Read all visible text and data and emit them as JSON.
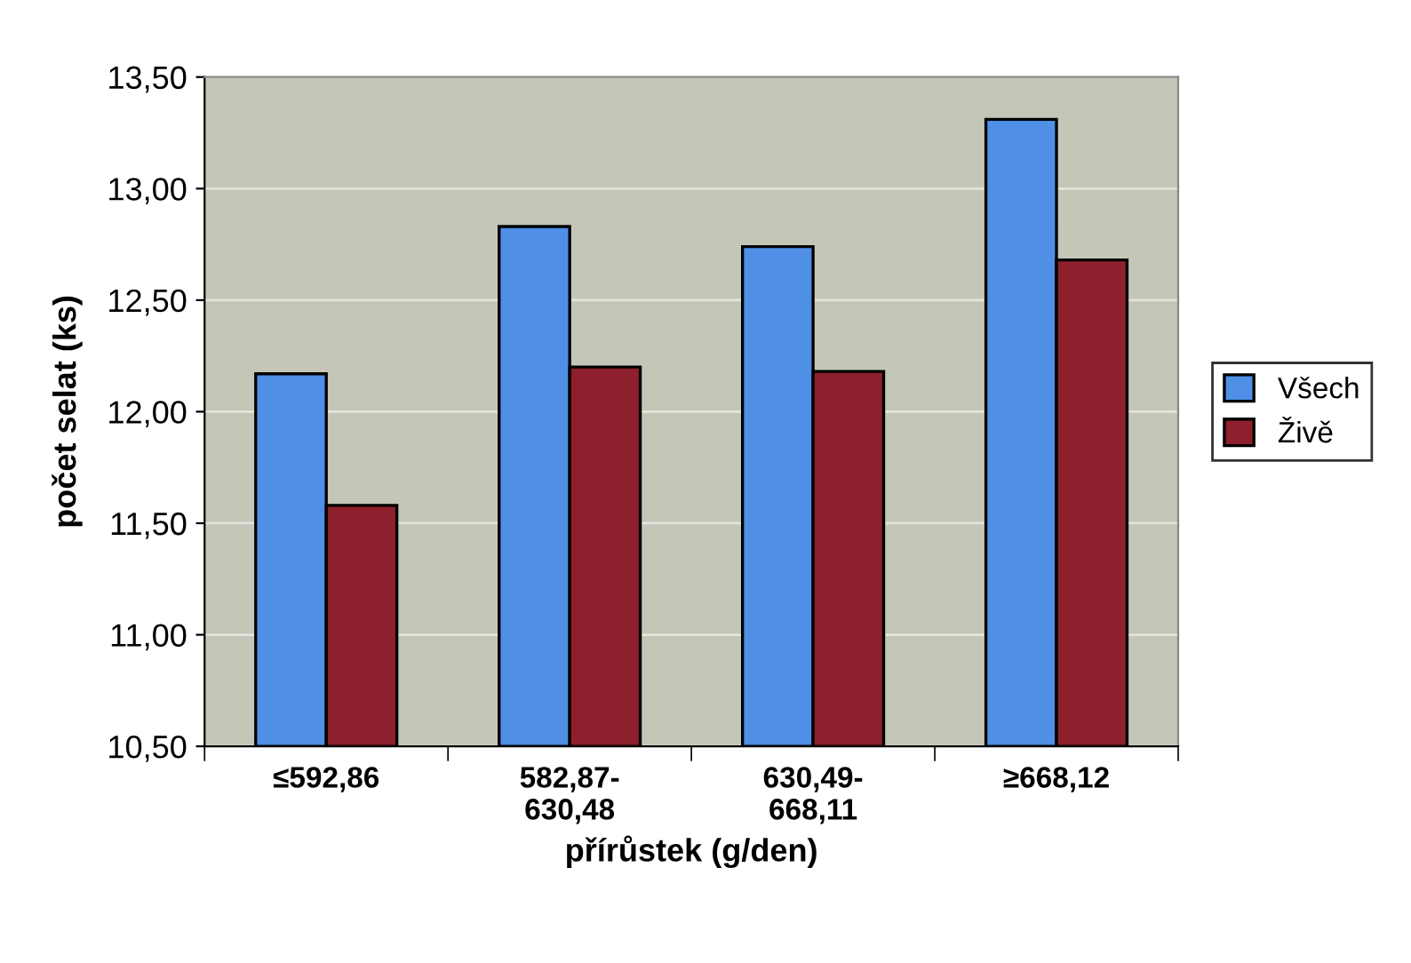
{
  "chart_data": {
    "type": "bar",
    "xlabel": "přírůstek (g/den)",
    "ylabel": "počet selat (ks)",
    "categories": [
      "≤592,86",
      "582,87-\n630,48",
      "630,49-\n668,11",
      "≥668,12"
    ],
    "series": [
      {
        "name": "Všech",
        "color": "#4f8fe6",
        "values": [
          12.17,
          12.83,
          12.74,
          13.31
        ]
      },
      {
        "name": "Živě",
        "color": "#8e1f2c",
        "values": [
          11.58,
          12.2,
          12.18,
          12.68
        ]
      }
    ],
    "ylim": [
      10.5,
      13.5
    ],
    "yticks": [
      {
        "value": 10.5,
        "label": "10,50"
      },
      {
        "value": 11,
        "label": "11,00"
      },
      {
        "value": 11.5,
        "label": "11,50"
      },
      {
        "value": 12,
        "label": "12,00"
      },
      {
        "value": 12.5,
        "label": "12,50"
      },
      {
        "value": 13,
        "label": "13,00"
      },
      {
        "value": 13.5,
        "label": "13,50"
      }
    ],
    "grid": "y",
    "legend": "right"
  }
}
